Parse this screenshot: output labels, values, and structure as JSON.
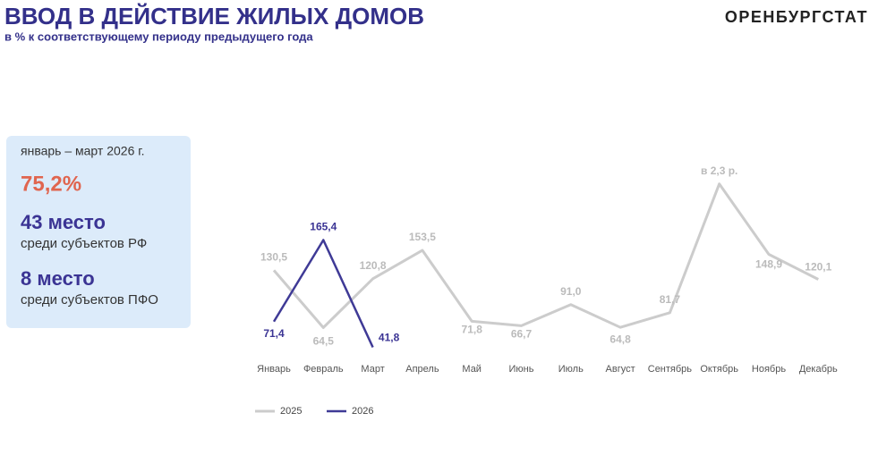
{
  "header": {
    "title": "ВВОД В ДЕЙСТВИЕ ЖИЛЫХ ДОМОВ",
    "subtitle": "в % к соответствующему периоду предыдущего года",
    "brand": "ОРЕНБУРГСТАТ"
  },
  "panel": {
    "period": "январь – март 2026 г.",
    "value": "75,2%",
    "rank_rf": "43 место",
    "rank_rf_text": "среди субъектов РФ",
    "rank_pfo": "8 место",
    "rank_pfo_text": "среди субъектов ПФО"
  },
  "chart_data": {
    "type": "line",
    "categories": [
      "Январь",
      "Февраль",
      "Март",
      "Апрель",
      "Май",
      "Июнь",
      "Июль",
      "Август",
      "Сентябрь",
      "Октябрь",
      "Ноябрь",
      "Декабрь"
    ],
    "series": [
      {
        "name": "2025",
        "color": "#cccccc",
        "values": [
          130.5,
          64.5,
          120.8,
          153.5,
          71.8,
          66.7,
          91.0,
          64.8,
          81.7,
          230,
          148.9,
          120.1
        ],
        "value_labels": [
          "130,5",
          "64,5",
          "120,8",
          "153,5",
          "71,8",
          "66,7",
          "91,0",
          "64,8",
          "81,7",
          "в 2,3 р.",
          "148,9",
          "120,1"
        ]
      },
      {
        "name": "2026",
        "color": "#3f3a96",
        "values": [
          71.4,
          165.4,
          41.8,
          null,
          null,
          null,
          null,
          null,
          null,
          null,
          null,
          null
        ],
        "value_labels": [
          "71,4",
          "165,4",
          "41,8",
          null,
          null,
          null,
          null,
          null,
          null,
          null,
          null,
          null
        ]
      }
    ],
    "ylim": [
      30,
      240
    ],
    "legend": "bottom-left"
  }
}
